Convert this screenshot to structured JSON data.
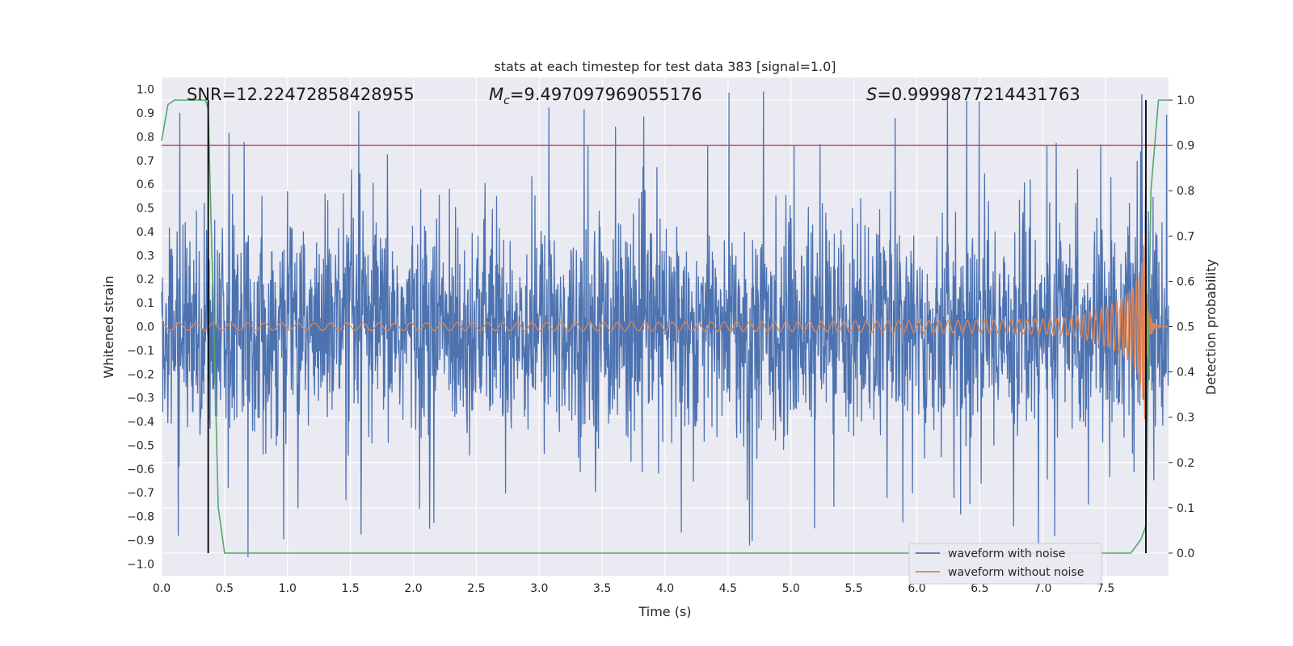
{
  "chart_data": {
    "type": "line",
    "title": "stats at each timestep for test data 383 [signal=1.0]",
    "xlabel": "Time (s)",
    "ylabel_left": "Whitened strain",
    "ylabel_right": "Detection probability",
    "xlim": [
      0.0,
      8.0
    ],
    "ylim_left": [
      -1.05,
      1.05
    ],
    "ylim_right": [
      -0.05,
      1.05
    ],
    "xticks": [
      "0.0",
      "0.5",
      "1.0",
      "1.5",
      "2.0",
      "2.5",
      "3.0",
      "3.5",
      "4.0",
      "4.5",
      "5.0",
      "5.5",
      "6.0",
      "6.5",
      "7.0",
      "7.5"
    ],
    "yticks_left": [
      "1.0",
      "0.9",
      "0.8",
      "0.7",
      "0.6",
      "0.5",
      "0.4",
      "0.3",
      "0.2",
      "0.1",
      "0.0",
      "−0.1",
      "−0.2",
      "−0.3",
      "−0.4",
      "−0.5",
      "−0.6",
      "−0.7",
      "−0.8",
      "−0.9",
      "−1.0"
    ],
    "yticks_right": [
      "1.0",
      "0.9",
      "0.8",
      "0.7",
      "0.6",
      "0.5",
      "0.4",
      "0.3",
      "0.2",
      "0.1",
      "0.0"
    ],
    "annotations": {
      "snr": "SNR=12.22472858428955",
      "mc_symbol": "M",
      "mc_sub": "c",
      "mc_value": "=9.497097969055176",
      "s_symbol": "S",
      "s_value": "=0.9999877214431763"
    },
    "threshold": 0.9,
    "vlines": [
      0.37,
      7.82
    ],
    "noisy_envelope": {
      "typical_abs_max": 0.55,
      "spike_max": 1.0
    },
    "chirp": {
      "merger_time": 7.82,
      "peak_amplitude": 0.42,
      "start_amplitude": 0.015
    },
    "probability": {
      "t": [
        0.0,
        0.05,
        0.1,
        0.15,
        0.35,
        0.37,
        0.41,
        0.45,
        0.5,
        0.55,
        2.0,
        4.0,
        6.0,
        7.5,
        7.7,
        7.78,
        7.82,
        7.86,
        7.92,
        8.0
      ],
      "p": [
        0.91,
        0.99,
        1.0,
        1.0,
        1.0,
        0.98,
        0.55,
        0.1,
        0.0,
        0.0,
        0.0,
        0.0,
        0.0,
        0.0,
        0.0,
        0.03,
        0.06,
        0.8,
        1.0,
        1.0
      ]
    },
    "legend": [
      "waveform with noise",
      "waveform without noise"
    ],
    "colors": {
      "noisy": "#4c72b0",
      "clean": "#dd8452",
      "probability": "#55a868",
      "threshold": "#c44e52",
      "vline": "#000000",
      "axes_bg": "#eaeaf2",
      "grid": "#ffffff"
    }
  }
}
